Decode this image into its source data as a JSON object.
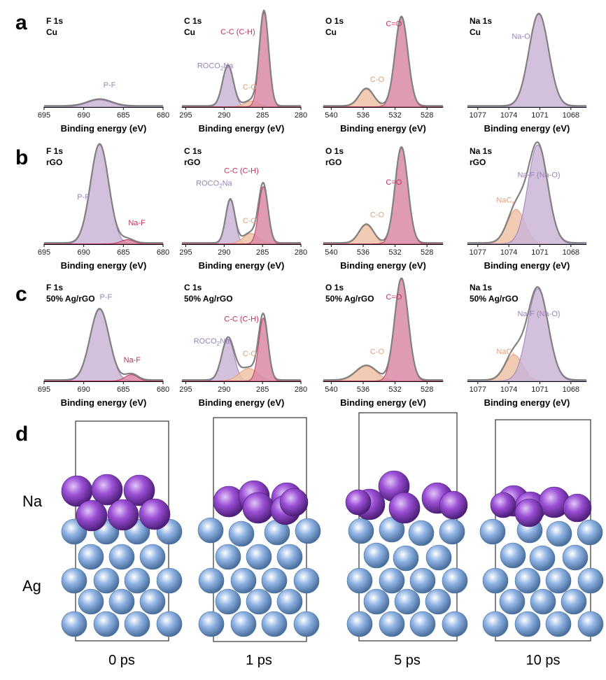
{
  "panel_letters": [
    "a",
    "b",
    "c",
    "d"
  ],
  "axis_label": "Binding energy (eV)",
  "colors": {
    "envelope": "#808080",
    "pf_fill": "#cbb5d6",
    "pf_line": "#a585b8",
    "naf_fill": "#d98aa6",
    "naf_line": "#c0305e",
    "cc_fill": "#d98aa6",
    "cc_line": "#b83a60",
    "roco_fill": "#cbb5d6",
    "roco_line": "#9a83b5",
    "co_fill": "#efc2a6",
    "co_line": "#e3a07a",
    "c_eq_o_fill": "#d98aa6",
    "c_eq_o_line": "#b83a60",
    "nao_fill": "#cbb5d6",
    "nao_line": "#9a83b5",
    "nacx_fill": "#efc2a6",
    "nacx_line": "#e3a07a",
    "label_purple": "#9a83b5",
    "label_pink": "#c0305e",
    "label_orange": "#e3a07a",
    "na_atom": "#9b4fd6",
    "ag_atom": "#8fb3e3",
    "box": "#333333"
  },
  "chart_data": [
    {
      "type": "area",
      "row": "a",
      "element": "F 1s",
      "sample": "Cu",
      "xlim": [
        695,
        680
      ],
      "xticks": [
        695,
        690,
        685,
        680
      ],
      "y_scale": "arbitrary",
      "series": [
        {
          "name": "P-F",
          "center": 688,
          "height": 0.07,
          "width": 1.5,
          "color_key": "pf"
        }
      ]
    },
    {
      "type": "area",
      "row": "a",
      "element": "C 1s",
      "sample": "Cu",
      "xlim": [
        295.5,
        280
      ],
      "xticks": [
        295,
        290,
        285,
        280
      ],
      "y_scale": "arbitrary",
      "series": [
        {
          "name": "ROCO2Na",
          "center": 289.5,
          "height": 0.42,
          "width": 0.7,
          "color_key": "roco"
        },
        {
          "name": "C-O",
          "center": 286.4,
          "height": 0.06,
          "width": 0.9,
          "color_key": "co"
        },
        {
          "name": "C-C (C-H)",
          "center": 284.8,
          "height": 0.97,
          "width": 0.6,
          "color_key": "cc"
        }
      ]
    },
    {
      "type": "area",
      "row": "a",
      "element": "O 1s",
      "sample": "Cu",
      "xlim": [
        541,
        526
      ],
      "xticks": [
        540,
        536,
        532,
        528
      ],
      "y_scale": "arbitrary",
      "series": [
        {
          "name": "C-O",
          "center": 535.6,
          "height": 0.18,
          "width": 0.9,
          "color_key": "co"
        },
        {
          "name": "C=O",
          "center": 531.2,
          "height": 0.92,
          "width": 0.8,
          "color_key": "c_eq_o"
        }
      ]
    },
    {
      "type": "area",
      "row": "a",
      "element": "Na 1s",
      "sample": "Cu",
      "xlim": [
        1078,
        1066.5
      ],
      "xticks": [
        1077,
        1074,
        1071,
        1068
      ],
      "y_scale": "arbitrary",
      "series": [
        {
          "name": "Na-O",
          "center": 1071.1,
          "height": 0.95,
          "width": 0.95,
          "color_key": "nao"
        }
      ]
    },
    {
      "type": "area",
      "row": "b",
      "element": "F 1s",
      "sample": "rGO",
      "xlim": [
        695,
        680
      ],
      "xticks": [
        695,
        690,
        685,
        680
      ],
      "y_scale": "arbitrary",
      "series": [
        {
          "name": "P-F",
          "center": 688,
          "height": 0.95,
          "width": 1.15,
          "color_key": "pf"
        },
        {
          "name": "Na-F",
          "center": 684.5,
          "height": 0.04,
          "width": 0.8,
          "color_key": "naf"
        }
      ]
    },
    {
      "type": "area",
      "row": "b",
      "element": "C 1s",
      "sample": "rGO",
      "xlim": [
        295.5,
        280
      ],
      "xticks": [
        295,
        290,
        285,
        280
      ],
      "y_scale": "arbitrary",
      "series": [
        {
          "name": "ROCO2Na",
          "center": 289.2,
          "height": 0.42,
          "width": 0.6,
          "color_key": "roco"
        },
        {
          "name": "C-O",
          "center": 286.5,
          "height": 0.1,
          "width": 1.0,
          "color_key": "co"
        },
        {
          "name": "C-C (C-H)",
          "center": 284.9,
          "height": 0.55,
          "width": 0.6,
          "color_key": "cc"
        }
      ]
    },
    {
      "type": "area",
      "row": "b",
      "element": "O 1s",
      "sample": "rGO",
      "xlim": [
        541,
        526
      ],
      "xticks": [
        540,
        536,
        532,
        528
      ],
      "y_scale": "arbitrary",
      "series": [
        {
          "name": "C-O",
          "center": 535.6,
          "height": 0.18,
          "width": 0.9,
          "color_key": "co"
        },
        {
          "name": "C=O",
          "center": 531.2,
          "height": 0.92,
          "width": 0.8,
          "color_key": "c_eq_o"
        }
      ]
    },
    {
      "type": "area",
      "row": "b",
      "element": "Na 1s",
      "sample": "rGO",
      "xlim": [
        1078,
        1066.5
      ],
      "xticks": [
        1077,
        1074,
        1071,
        1068
      ],
      "y_scale": "arbitrary",
      "series": [
        {
          "name": "NaCx",
          "center": 1073.3,
          "height": 0.33,
          "width": 0.85,
          "color_key": "nacx"
        },
        {
          "name": "Na-F (Na-O)",
          "center": 1071.2,
          "height": 0.95,
          "width": 0.95,
          "color_key": "nao"
        }
      ]
    },
    {
      "type": "area",
      "row": "c",
      "element": "F 1s",
      "sample": "50% Ag/rGO",
      "xlim": [
        695,
        680
      ],
      "xticks": [
        695,
        690,
        685,
        680
      ],
      "y_scale": "arbitrary",
      "series": [
        {
          "name": "P-F",
          "center": 688,
          "height": 0.68,
          "width": 1.2,
          "color_key": "pf"
        },
        {
          "name": "Na-F",
          "center": 684,
          "height": 0.06,
          "width": 0.8,
          "color_key": "naf"
        }
      ]
    },
    {
      "type": "area",
      "row": "c",
      "element": "C 1s",
      "sample": "50% Ag/rGO",
      "xlim": [
        295.5,
        280
      ],
      "xticks": [
        295,
        290,
        285,
        280
      ],
      "y_scale": "arbitrary",
      "series": [
        {
          "name": "ROCO2Na",
          "center": 289.5,
          "height": 0.4,
          "width": 0.8,
          "color_key": "roco"
        },
        {
          "name": "C-O",
          "center": 286.8,
          "height": 0.12,
          "width": 1.2,
          "color_key": "co"
        },
        {
          "name": "C-C (C-H)",
          "center": 284.9,
          "height": 0.6,
          "width": 0.6,
          "color_key": "cc"
        }
      ]
    },
    {
      "type": "area",
      "row": "c",
      "element": "O 1s",
      "sample": "50% Ag/rGO",
      "xlim": [
        541,
        526
      ],
      "xticks": [
        540,
        536,
        532,
        528
      ],
      "y_scale": "arbitrary",
      "series": [
        {
          "name": "C-O",
          "center": 535.6,
          "height": 0.14,
          "width": 1.3,
          "color_key": "co"
        },
        {
          "name": "C=O",
          "center": 531.2,
          "height": 0.97,
          "width": 0.85,
          "color_key": "c_eq_o"
        }
      ]
    },
    {
      "type": "area",
      "row": "c",
      "element": "Na 1s",
      "sample": "50% Ag/rGO",
      "xlim": [
        1078,
        1066.5
      ],
      "xticks": [
        1077,
        1074,
        1071,
        1068
      ],
      "y_scale": "arbitrary",
      "series": [
        {
          "name": "NaCx",
          "center": 1073.5,
          "height": 0.25,
          "width": 0.85,
          "color_key": "nacx"
        },
        {
          "name": "Na-F (Na-O)",
          "center": 1071.2,
          "height": 0.88,
          "width": 1.0,
          "color_key": "nao"
        }
      ]
    }
  ],
  "md_panel": {
    "row_labels": [
      "Na",
      "Ag"
    ],
    "snapshots": [
      "0 ps",
      "1 ps",
      "5 ps",
      "10 ps"
    ]
  }
}
